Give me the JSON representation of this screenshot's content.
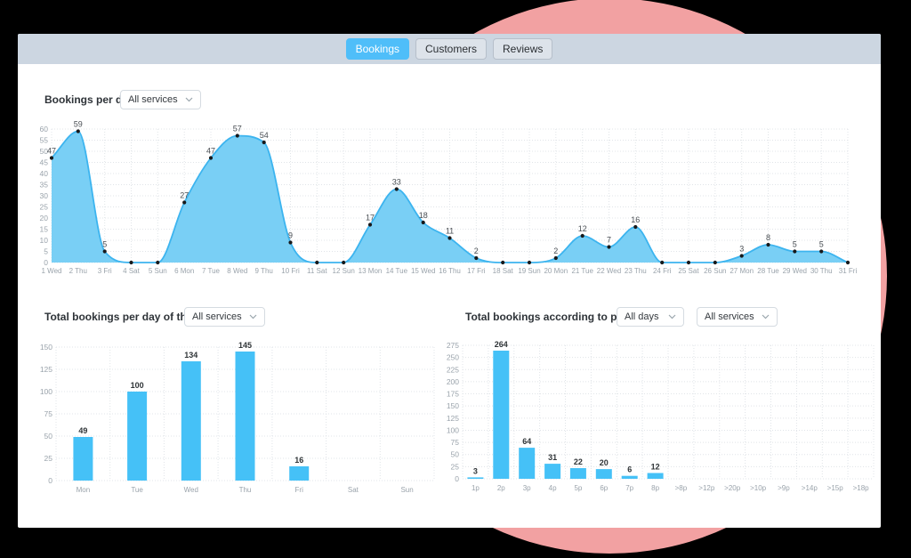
{
  "tabs": {
    "items": [
      {
        "label": "Bookings",
        "active": true
      },
      {
        "label": "Customers",
        "active": false
      },
      {
        "label": "Reviews",
        "active": false
      }
    ]
  },
  "colors": {
    "accent_blue": "#45c1f7",
    "area_fill": "#79cff5",
    "area_stroke": "#3cb4ef",
    "bar_blue": "#45c1f7",
    "dot_black": "#17191b",
    "topbar_bg": "#ccd6e1",
    "active_tab_bg": "#4fbef9",
    "pink_decoration": "#f2a1a2"
  },
  "chart_data": [
    {
      "id": "bookings-per-day",
      "type": "area",
      "title": "Bookings per day",
      "filters": [
        {
          "value": "All services"
        }
      ],
      "categories": [
        "1 Wed",
        "2 Thu",
        "3 Fri",
        "4 Sat",
        "5 Sun",
        "6 Mon",
        "7 Tue",
        "8 Wed",
        "9 Thu",
        "10 Fri",
        "11 Sat",
        "12 Sun",
        "13 Mon",
        "14 Tue",
        "15 Wed",
        "16 Thu",
        "17 Fri",
        "18 Sat",
        "19 Sun",
        "20 Mon",
        "21 Tue",
        "22 Wed",
        "23 Thu",
        "24 Fri",
        "25 Sat",
        "26 Sun",
        "27 Mon",
        "28 Tue",
        "29 Wed",
        "30 Thu",
        "31 Fri"
      ],
      "values": [
        47,
        59,
        5,
        0,
        0,
        27,
        47,
        57,
        54,
        9,
        0,
        0,
        17,
        33,
        18,
        11,
        2,
        0,
        0,
        2,
        12,
        7,
        16,
        0,
        0,
        0,
        3,
        8,
        5,
        5,
        0
      ],
      "ylim": [
        0,
        60
      ],
      "ytick": 5,
      "grid": true,
      "point_labels": true
    },
    {
      "id": "bookings-per-weekday",
      "type": "bar",
      "title": "Total bookings per day of the week",
      "filters": [
        {
          "value": "All services"
        }
      ],
      "categories": [
        "Mon",
        "Tue",
        "Wed",
        "Thu",
        "Fri",
        "Sat",
        "Sun"
      ],
      "values": [
        49,
        100,
        134,
        145,
        16,
        0,
        0
      ],
      "ylim": [
        0,
        150
      ],
      "ytick": 25,
      "grid": true,
      "point_labels": true
    },
    {
      "id": "bookings-by-party-size",
      "type": "bar",
      "title": "Total bookings according to party size",
      "filters": [
        {
          "value": "All days"
        },
        {
          "value": "All services"
        }
      ],
      "categories": [
        "1p",
        "2p",
        "3p",
        "4p",
        "5p",
        "6p",
        "7p",
        "8p",
        ">8p",
        ">12p",
        ">20p",
        ">10p",
        ">9p",
        ">14p",
        ">15p",
        ">18p"
      ],
      "values": [
        3,
        264,
        64,
        31,
        22,
        20,
        6,
        12,
        0,
        0,
        0,
        0,
        0,
        0,
        0,
        0
      ],
      "ylim": [
        0,
        275
      ],
      "ytick": 25,
      "grid": true,
      "point_labels": true
    }
  ]
}
